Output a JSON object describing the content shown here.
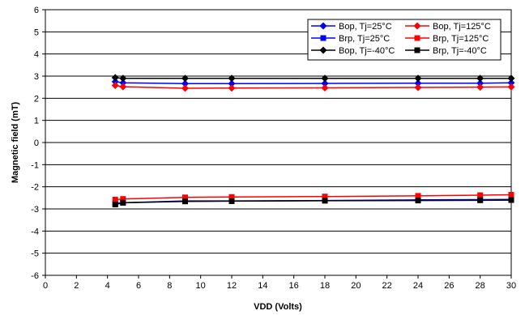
{
  "chart_data": {
    "type": "line",
    "title": "",
    "xlabel": "VDD (Volts)",
    "ylabel": "Magnetic field (mT)",
    "xlim": [
      0,
      30
    ],
    "ylim": [
      -6,
      6
    ],
    "x_ticks": [
      0,
      2,
      4,
      6,
      8,
      10,
      12,
      14,
      16,
      18,
      20,
      22,
      24,
      26,
      28,
      30
    ],
    "y_ticks": [
      6,
      5,
      4,
      3,
      2,
      1,
      0,
      -1,
      -2,
      -3,
      -4,
      -5,
      -6
    ],
    "grid": "horizontal",
    "legend_position": "top-right",
    "x": [
      4.5,
      5,
      9,
      12,
      18,
      24,
      28,
      30
    ],
    "series": [
      {
        "name": "Bop, Tj=25°C",
        "color": "#0000ff",
        "marker": "diamond",
        "values": [
          2.75,
          2.7,
          2.66,
          2.66,
          2.67,
          2.68,
          2.68,
          2.7
        ]
      },
      {
        "name": "Bop, Tj=125°C",
        "color": "#ff0000",
        "marker": "diamond",
        "values": [
          2.58,
          2.52,
          2.45,
          2.46,
          2.47,
          2.49,
          2.5,
          2.51
        ]
      },
      {
        "name": "Brp, Tj=25°C",
        "color": "#0000ff",
        "marker": "square",
        "values": [
          -2.75,
          -2.72,
          -2.64,
          -2.64,
          -2.62,
          -2.59,
          -2.58,
          -2.57
        ]
      },
      {
        "name": "Brp, Tj=125°C",
        "color": "#ff0000",
        "marker": "square",
        "values": [
          -2.58,
          -2.55,
          -2.48,
          -2.46,
          -2.44,
          -2.41,
          -2.38,
          -2.36
        ]
      },
      {
        "name": "Bop, Tj=-40°C",
        "color": "#000000",
        "marker": "diamond",
        "values": [
          2.93,
          2.9,
          2.9,
          2.9,
          2.9,
          2.9,
          2.9,
          2.9
        ]
      },
      {
        "name": "Brp, Tj=-40°C",
        "color": "#000000",
        "marker": "square",
        "values": [
          -2.8,
          -2.72,
          -2.66,
          -2.65,
          -2.63,
          -2.62,
          -2.61,
          -2.6
        ]
      }
    ]
  }
}
